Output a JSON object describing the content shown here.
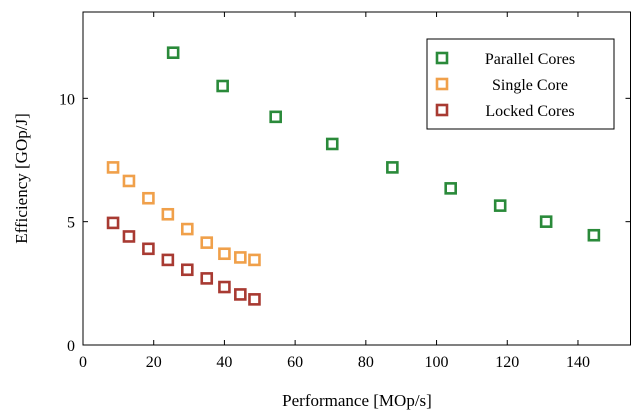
{
  "chart_data": {
    "type": "scatter",
    "title": "",
    "xlabel": "Performance [MOp/s]",
    "ylabel": "Efficiency [GOp/J]",
    "xlim": [
      0,
      155
    ],
    "ylim": [
      0,
      13.5
    ],
    "xticks": [
      0,
      20,
      40,
      60,
      80,
      100,
      120,
      140
    ],
    "yticks": [
      0,
      5,
      10
    ],
    "grid": false,
    "legend_position": "top-right",
    "marker": "open-square",
    "series": [
      {
        "name": "Parallel Cores",
        "color": "#2a8a3a",
        "x": [
          25.5,
          39.5,
          54.5,
          70.5,
          87.5,
          104,
          118,
          131,
          144.5
        ],
        "y": [
          11.85,
          10.5,
          9.25,
          8.15,
          7.2,
          6.35,
          5.65,
          5.0,
          4.45
        ]
      },
      {
        "name": "Single Core",
        "color": "#f0a04a",
        "x": [
          8.5,
          13,
          18.5,
          24,
          29.5,
          35,
          40,
          44.5,
          48.5
        ],
        "y": [
          7.2,
          6.65,
          5.95,
          5.3,
          4.7,
          4.15,
          3.7,
          3.55,
          3.45
        ]
      },
      {
        "name": "Locked Cores",
        "color": "#a83a32",
        "x": [
          8.5,
          13,
          18.5,
          24,
          29.5,
          35,
          40,
          44.5,
          48.5
        ],
        "y": [
          4.95,
          4.4,
          3.9,
          3.45,
          3.05,
          2.7,
          2.35,
          2.05,
          1.85
        ]
      }
    ]
  }
}
